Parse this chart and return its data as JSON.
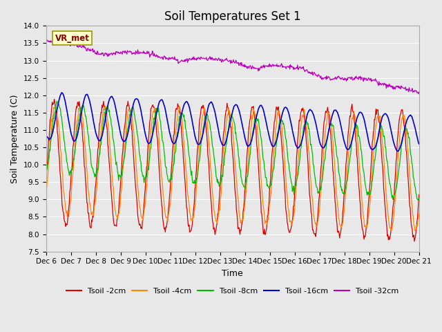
{
  "title": "Soil Temperatures Set 1",
  "xlabel": "Time",
  "ylabel": "Soil Temperature (C)",
  "ylim": [
    7.5,
    14.0
  ],
  "series_colors": {
    "Tsoil -2cm": "#dd0000",
    "Tsoil -4cm": "#ff8800",
    "Tsoil -8cm": "#00bb00",
    "Tsoil -16cm": "#0000cc",
    "Tsoil -32cm": "#bb00bb"
  },
  "legend_label": "VR_met",
  "background_color": "#e8e8e8",
  "grid_color": "#ffffff",
  "xtick_labels": [
    "Dec 6",
    "Dec 7",
    "Dec 8",
    "Dec 9",
    "Dec 10",
    "Dec 11",
    "Dec 12",
    "Dec 13",
    "Dec 14",
    "Dec 15",
    "Dec 16",
    "Dec 17",
    "Dec 18",
    "Dec 19",
    "Dec 20",
    "Dec 21"
  ],
  "title_fontsize": 12,
  "axis_label_fontsize": 9,
  "tick_fontsize": 7.5
}
